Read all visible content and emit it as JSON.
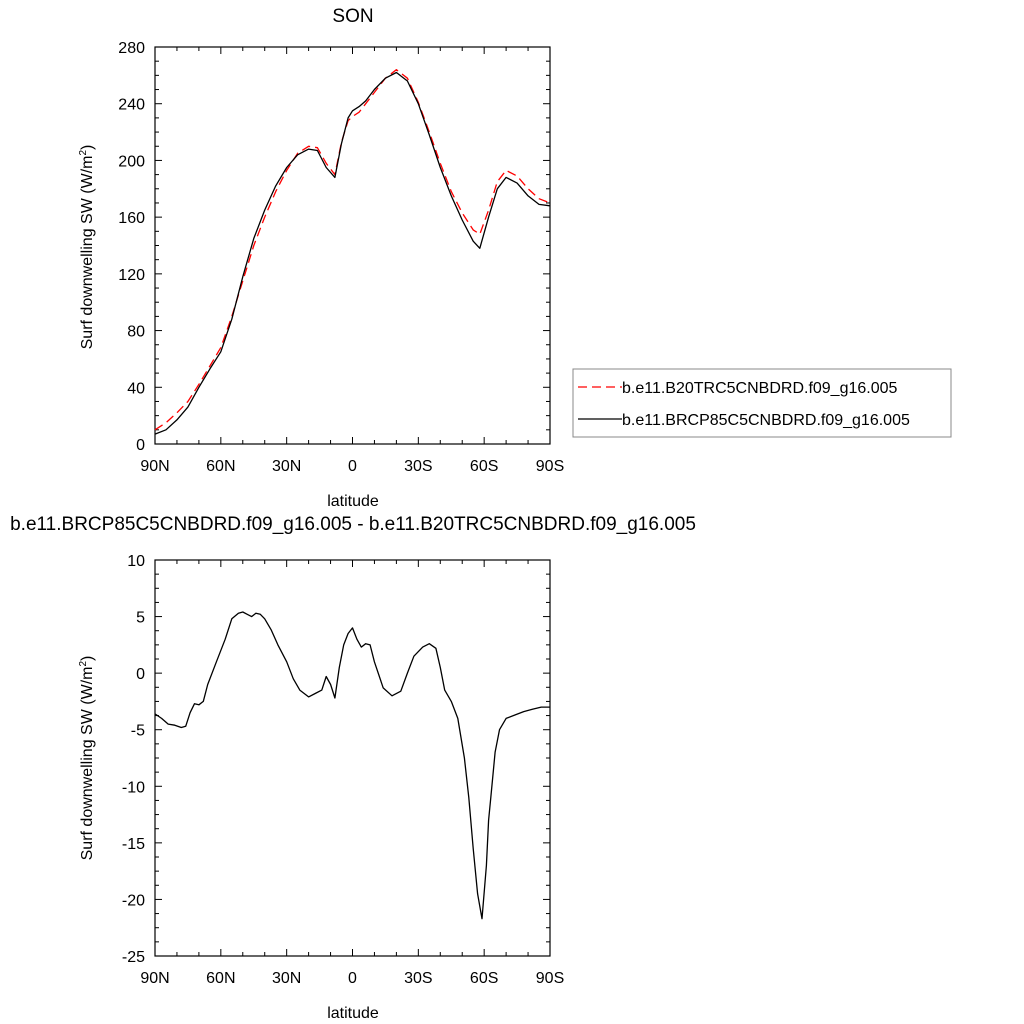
{
  "chart_data": [
    {
      "type": "line",
      "title": "SON",
      "xlabel": "latitude",
      "ylabel": "Surf downwelling SW (W/m",
      "ylabel_sup": "2",
      "ylabel_close": ")",
      "xlim": [
        90,
        -90
      ],
      "ylim": [
        0,
        280
      ],
      "xticks": [
        {
          "value": 90,
          "label": "90N"
        },
        {
          "value": 60,
          "label": "60N"
        },
        {
          "value": 30,
          "label": "30N"
        },
        {
          "value": 0,
          "label": "0"
        },
        {
          "value": -30,
          "label": "30S"
        },
        {
          "value": -60,
          "label": "60S"
        },
        {
          "value": -90,
          "label": "90S"
        }
      ],
      "yticks": [
        0,
        40,
        80,
        120,
        160,
        200,
        240,
        280
      ],
      "legend_position": "right-bottom",
      "series": [
        {
          "name": "b.e11.B20TRC5CNBDRD.f09_g16.005",
          "color": "#ff0000",
          "dash": "dashed",
          "x": [
            90,
            85,
            80,
            75,
            70,
            65,
            60,
            55,
            50,
            45,
            40,
            35,
            30,
            25,
            20,
            16,
            12,
            8,
            5,
            2,
            0,
            -3,
            -6,
            -10,
            -15,
            -20,
            -25,
            -30,
            -35,
            -40,
            -45,
            -50,
            -55,
            -58,
            -62,
            -66,
            -70,
            -75,
            -80,
            -85,
            -90
          ],
          "y": [
            10,
            15,
            22,
            30,
            42,
            55,
            68,
            90,
            115,
            140,
            160,
            178,
            193,
            205,
            210,
            209,
            198,
            190,
            213,
            228,
            231,
            234,
            240,
            248,
            258,
            264,
            258,
            241,
            220,
            198,
            178,
            163,
            151,
            148,
            165,
            185,
            193,
            189,
            180,
            173,
            170
          ]
        },
        {
          "name": "b.e11.BRCP85C5CNBDRD.f09_g16.005",
          "color": "#000000",
          "dash": "solid",
          "x": [
            90,
            85,
            80,
            75,
            70,
            65,
            60,
            55,
            50,
            45,
            40,
            35,
            30,
            25,
            20,
            16,
            12,
            8,
            5,
            2,
            0,
            -3,
            -6,
            -10,
            -15,
            -20,
            -25,
            -30,
            -35,
            -40,
            -45,
            -50,
            -55,
            -58,
            -62,
            -66,
            -70,
            -75,
            -80,
            -85,
            -90
          ],
          "y": [
            7,
            10,
            17,
            26,
            40,
            53,
            65,
            88,
            118,
            145,
            165,
            182,
            195,
            204,
            208,
            207,
            195,
            188,
            212,
            230,
            235,
            238,
            242,
            250,
            258,
            262,
            256,
            240,
            218,
            195,
            175,
            158,
            143,
            138,
            160,
            180,
            188,
            184,
            175,
            169,
            168
          ]
        }
      ]
    },
    {
      "type": "line",
      "title": "b.e11.BRCP85C5CNBDRD.f09_g16.005 - b.e11.B20TRC5CNBDRD.f09_g16.005",
      "xlabel": "latitude",
      "ylabel": "Surf downwelling SW (W/m",
      "ylabel_sup": "2",
      "ylabel_close": ")",
      "xlim": [
        90,
        -90
      ],
      "ylim": [
        -25,
        10
      ],
      "xticks": [
        {
          "value": 90,
          "label": "90N"
        },
        {
          "value": 60,
          "label": "60N"
        },
        {
          "value": 30,
          "label": "30N"
        },
        {
          "value": 0,
          "label": "0"
        },
        {
          "value": -30,
          "label": "30S"
        },
        {
          "value": -60,
          "label": "60S"
        },
        {
          "value": -90,
          "label": "90S"
        }
      ],
      "yticks": [
        -25,
        -20,
        -15,
        -10,
        -5,
        0,
        5,
        10
      ],
      "series": [
        {
          "color": "#000000",
          "dash": "solid",
          "x": [
            90,
            87,
            84,
            81,
            78,
            76,
            74,
            72,
            70,
            68,
            66,
            62,
            58,
            55,
            52,
            50,
            48,
            46,
            44,
            42,
            40,
            37,
            34,
            30,
            27,
            24,
            20,
            17,
            14,
            12,
            10,
            8,
            6,
            4,
            2,
            0,
            -2,
            -4,
            -6,
            -8,
            -10,
            -14,
            -18,
            -22,
            -25,
            -28,
            -32,
            -35,
            -38,
            -40,
            -42,
            -45,
            -48,
            -51,
            -53,
            -55,
            -57,
            -59,
            -61,
            -62,
            -63,
            -65,
            -67,
            -70,
            -74,
            -78,
            -82,
            -86,
            -90
          ],
          "y": [
            -3.6,
            -4.0,
            -4.5,
            -4.6,
            -4.8,
            -4.7,
            -3.5,
            -2.7,
            -2.8,
            -2.5,
            -1.0,
            1.0,
            3.0,
            4.8,
            5.3,
            5.4,
            5.2,
            5.0,
            5.3,
            5.2,
            4.8,
            3.8,
            2.5,
            1.0,
            -0.5,
            -1.5,
            -2.1,
            -1.8,
            -1.5,
            -0.3,
            -1.0,
            -2.2,
            0.5,
            2.5,
            3.5,
            4.0,
            3.0,
            2.3,
            2.6,
            2.5,
            1.0,
            -1.3,
            -2.0,
            -1.6,
            0.0,
            1.5,
            2.3,
            2.6,
            2.2,
            0.5,
            -1.5,
            -2.5,
            -4.0,
            -7.5,
            -11.0,
            -15.5,
            -19.5,
            -21.7,
            -17.0,
            -13.0,
            -11.0,
            -7.0,
            -5.0,
            -4.0,
            -3.7,
            -3.4,
            -3.2,
            -3.0,
            -3.0
          ]
        }
      ]
    }
  ]
}
